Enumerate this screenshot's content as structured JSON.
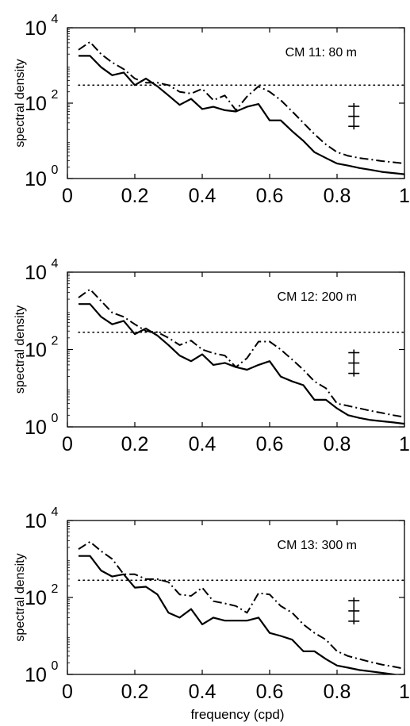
{
  "chart_data": [
    {
      "type": "line",
      "title": "CM 11: 80 m",
      "xlabel": "",
      "ylabel": "spectral density",
      "xlim": [
        0,
        1
      ],
      "ylim": [
        1,
        10000
      ],
      "yscale": "log",
      "xticks": [
        "0",
        "0.2",
        "0.4",
        "0.6",
        "0.8",
        "1"
      ],
      "yticks": [
        {
          "base": "10",
          "exp": "0"
        },
        {
          "base": "10",
          "exp": "2"
        },
        {
          "base": "10",
          "exp": "4"
        }
      ],
      "grid": false,
      "error_bar": {
        "x": 0.85,
        "low": 20,
        "high": 100
      },
      "series": [
        {
          "style": "solid",
          "x": [
            0.033,
            0.067,
            0.1,
            0.133,
            0.167,
            0.2,
            0.233,
            0.267,
            0.3,
            0.333,
            0.367,
            0.4,
            0.433,
            0.467,
            0.5,
            0.533,
            0.567,
            0.6,
            0.633,
            0.667,
            0.7,
            0.733,
            0.767,
            0.8,
            0.833,
            0.867,
            0.9,
            0.933,
            0.967,
            1.0
          ],
          "y": [
            1800,
            1800,
            900,
            550,
            650,
            300,
            450,
            280,
            160,
            90,
            130,
            70,
            80,
            65,
            60,
            80,
            95,
            35,
            35,
            18,
            10,
            5,
            3.5,
            2.5,
            2.2,
            1.9,
            1.7,
            1.5,
            1.4,
            1.3
          ]
        },
        {
          "style": "dashdot",
          "x": [
            0.033,
            0.067,
            0.1,
            0.133,
            0.167,
            0.2,
            0.233,
            0.267,
            0.3,
            0.333,
            0.367,
            0.4,
            0.433,
            0.467,
            0.5,
            0.533,
            0.567,
            0.6,
            0.633,
            0.667,
            0.7,
            0.733,
            0.767,
            0.8,
            0.833,
            0.867,
            0.9,
            0.933,
            0.967,
            1.0
          ],
          "y": [
            2600,
            4200,
            2000,
            1200,
            800,
            450,
            350,
            350,
            300,
            200,
            180,
            240,
            120,
            160,
            65,
            150,
            280,
            200,
            120,
            60,
            30,
            15,
            8,
            5,
            4,
            3.5,
            3.2,
            2.9,
            2.7,
            2.5
          ]
        },
        {
          "style": "dotted",
          "x": [
            0.033,
            1.0
          ],
          "y": [
            300,
            300
          ]
        }
      ]
    },
    {
      "type": "line",
      "title": "CM 12: 200 m",
      "xlabel": "",
      "ylabel": "spectral density",
      "xlim": [
        0,
        1
      ],
      "ylim": [
        1,
        10000
      ],
      "yscale": "log",
      "xticks": [
        "0",
        "0.2",
        "0.4",
        "0.6",
        "0.8",
        "1"
      ],
      "yticks": [
        {
          "base": "10",
          "exp": "0"
        },
        {
          "base": "10",
          "exp": "2"
        },
        {
          "base": "10",
          "exp": "4"
        }
      ],
      "grid": false,
      "error_bar": {
        "x": 0.85,
        "low": 20,
        "high": 100
      },
      "series": [
        {
          "style": "solid",
          "x": [
            0.033,
            0.067,
            0.1,
            0.133,
            0.167,
            0.2,
            0.233,
            0.267,
            0.3,
            0.333,
            0.367,
            0.4,
            0.433,
            0.467,
            0.5,
            0.533,
            0.567,
            0.6,
            0.633,
            0.667,
            0.7,
            0.733,
            0.767,
            0.8,
            0.833,
            0.867,
            0.9,
            0.933,
            0.967,
            1.0
          ],
          "y": [
            1500,
            1500,
            700,
            450,
            550,
            250,
            350,
            230,
            130,
            70,
            50,
            75,
            40,
            45,
            35,
            30,
            40,
            50,
            20,
            15,
            12,
            5,
            5,
            3,
            2,
            1.7,
            1.5,
            1.4,
            1.3,
            1.2
          ]
        },
        {
          "style": "dashdot",
          "x": [
            0.033,
            0.067,
            0.1,
            0.133,
            0.167,
            0.2,
            0.233,
            0.267,
            0.3,
            0.333,
            0.367,
            0.4,
            0.433,
            0.467,
            0.5,
            0.533,
            0.567,
            0.6,
            0.633,
            0.667,
            0.7,
            0.733,
            0.767,
            0.8,
            0.833,
            0.867,
            0.9,
            0.933,
            0.967,
            1.0
          ],
          "y": [
            2200,
            3600,
            1800,
            900,
            700,
            450,
            300,
            280,
            200,
            130,
            170,
            100,
            80,
            70,
            35,
            60,
            160,
            160,
            100,
            55,
            30,
            15,
            10,
            4,
            3.5,
            3,
            2.6,
            2.3,
            2,
            1.8
          ]
        },
        {
          "style": "dotted",
          "x": [
            0.033,
            1.0
          ],
          "y": [
            280,
            280
          ]
        }
      ]
    },
    {
      "type": "line",
      "title": "CM 13: 300 m",
      "xlabel": "frequency (cpd)",
      "ylabel": "spectral density",
      "xlim": [
        0,
        1
      ],
      "ylim": [
        1,
        10000
      ],
      "yscale": "log",
      "xticks": [
        "0",
        "0.2",
        "0.4",
        "0.6",
        "0.8",
        "1"
      ],
      "yticks": [
        {
          "base": "10",
          "exp": "0"
        },
        {
          "base": "10",
          "exp": "2"
        },
        {
          "base": "10",
          "exp": "4"
        }
      ],
      "grid": false,
      "error_bar": {
        "x": 0.85,
        "low": 20,
        "high": 100
      },
      "series": [
        {
          "style": "solid",
          "x": [
            0.033,
            0.067,
            0.1,
            0.133,
            0.167,
            0.2,
            0.233,
            0.267,
            0.3,
            0.333,
            0.367,
            0.4,
            0.433,
            0.467,
            0.5,
            0.533,
            0.567,
            0.6,
            0.633,
            0.667,
            0.7,
            0.733,
            0.767,
            0.8,
            0.833,
            0.867,
            0.9,
            0.933,
            0.967,
            1.0
          ],
          "y": [
            1200,
            1200,
            500,
            350,
            400,
            180,
            190,
            120,
            40,
            30,
            50,
            20,
            30,
            25,
            25,
            25,
            30,
            12,
            10,
            8,
            4,
            4,
            2.5,
            1.7,
            1.5,
            1.3,
            1.2,
            1.1,
            1,
            0.9
          ]
        },
        {
          "style": "dashdot",
          "x": [
            0.033,
            0.067,
            0.1,
            0.133,
            0.167,
            0.2,
            0.233,
            0.267,
            0.3,
            0.333,
            0.367,
            0.4,
            0.433,
            0.467,
            0.5,
            0.533,
            0.567,
            0.6,
            0.633,
            0.667,
            0.7,
            0.733,
            0.767,
            0.8,
            0.833,
            0.867,
            0.9,
            0.933,
            0.967,
            1.0
          ],
          "y": [
            1800,
            2800,
            1600,
            1000,
            400,
            400,
            300,
            300,
            250,
            120,
            110,
            180,
            80,
            70,
            60,
            40,
            130,
            120,
            60,
            40,
            20,
            12,
            8,
            4,
            3,
            2.5,
            2.1,
            1.8,
            1.6,
            1.4
          ]
        },
        {
          "style": "dotted",
          "x": [
            0.033,
            1.0
          ],
          "y": [
            280,
            280
          ]
        }
      ]
    }
  ]
}
